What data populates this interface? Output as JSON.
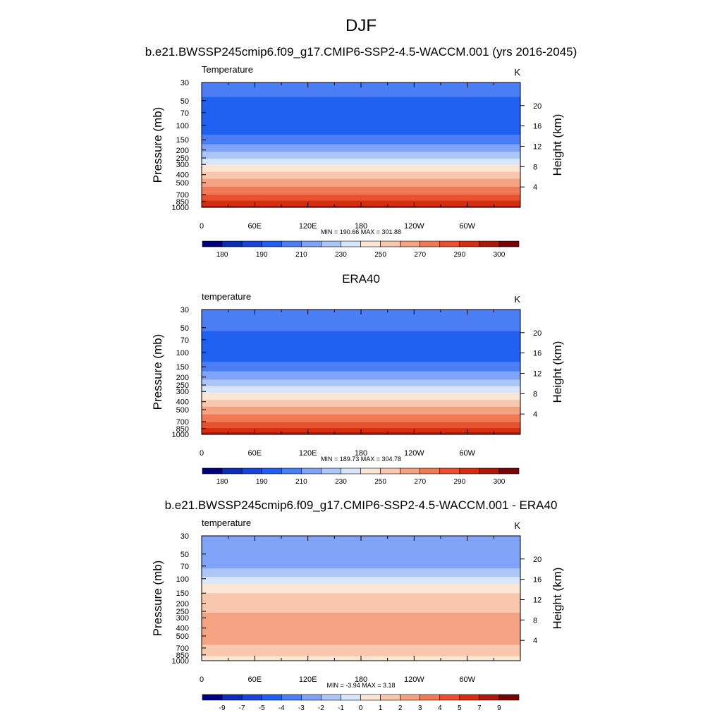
{
  "page_title": "DJF",
  "panels": [
    {
      "title": "b.e21.BWSSP245cmip6.f09_g17.CMIP6-SSP2-4.5-WACCM.001 (yrs 2016-2045)",
      "left_label": "Temperature",
      "units": "K",
      "stats": "MIN = 190.66  MAX = 301.88"
    },
    {
      "title": "ERA40",
      "left_label": "temperature",
      "units": "K",
      "stats": "MIN = 189.73  MAX = 304.78"
    },
    {
      "title": "b.e21.BWSSP245cmip6.f09_g17.CMIP6-SSP2-4.5-WACCM.001 - ERA40",
      "left_label": "temperature",
      "units": "K",
      "stats": "MIN =  -3.94  MAX =   3.18"
    }
  ],
  "chart_data": [
    {
      "type": "heatmap",
      "title": "b.e21.BWSSP245cmip6.f09_g17.CMIP6-SSP2-4.5-WACCM.001 (yrs 2016-2045)",
      "field": "Temperature",
      "units": "K",
      "xlabel": "",
      "ylabel": "Pressure (mb)",
      "y2label": "Height (km)",
      "x_ticks": [
        "0",
        "60E",
        "120E",
        "180",
        "120W",
        "60W"
      ],
      "y_ticks": [
        30,
        50,
        70,
        100,
        150,
        200,
        250,
        300,
        400,
        500,
        700,
        850,
        1000
      ],
      "y2_ticks": [
        20,
        16,
        12,
        8,
        4
      ],
      "min": 190.66,
      "max": 301.88,
      "colorbar_labels": [
        "180",
        "190",
        "210",
        "230",
        "250",
        "270",
        "290",
        "300"
      ],
      "colorbar_colors": [
        "#00007f",
        "#0a2fb4",
        "#1a44d9",
        "#2060f0",
        "#4b7ef5",
        "#7fa3f6",
        "#adc6f8",
        "#d8e6fb",
        "#fbe6d6",
        "#f9c7ad",
        "#f5a283",
        "#f07a56",
        "#e9502f",
        "#d42d12",
        "#a91a0a",
        "#7a0403"
      ],
      "profile": [
        {
          "p": 30,
          "band": 4
        },
        {
          "p": 45,
          "band": 3
        },
        {
          "p": 130,
          "band": 4
        },
        {
          "p": 170,
          "band": 5
        },
        {
          "p": 210,
          "band": 6
        },
        {
          "p": 255,
          "band": 7
        },
        {
          "p": 300,
          "band": 8
        },
        {
          "p": 370,
          "band": 9
        },
        {
          "p": 450,
          "band": 10
        },
        {
          "p": 560,
          "band": 11
        },
        {
          "p": 700,
          "band": 12
        },
        {
          "p": 830,
          "band": 13
        },
        {
          "p": 960,
          "band": 14
        },
        {
          "p": 1000,
          "band": 14
        }
      ]
    },
    {
      "type": "heatmap",
      "title": "ERA40",
      "field": "temperature",
      "units": "K",
      "xlabel": "",
      "ylabel": "Pressure (mb)",
      "y2label": "Height (km)",
      "x_ticks": [
        "0",
        "60E",
        "120E",
        "180",
        "120W",
        "60W"
      ],
      "y_ticks": [
        30,
        50,
        70,
        100,
        150,
        200,
        250,
        300,
        400,
        500,
        700,
        850,
        1000
      ],
      "y2_ticks": [
        20,
        16,
        12,
        8,
        4
      ],
      "min": 189.73,
      "max": 304.78,
      "colorbar_labels": [
        "180",
        "190",
        "210",
        "230",
        "250",
        "270",
        "290",
        "300"
      ],
      "colorbar_colors": [
        "#00007f",
        "#0a2fb4",
        "#1a44d9",
        "#2060f0",
        "#4b7ef5",
        "#7fa3f6",
        "#adc6f8",
        "#d8e6fb",
        "#fbe6d6",
        "#f9c7ad",
        "#f5a283",
        "#f07a56",
        "#e9502f",
        "#d42d12",
        "#a91a0a",
        "#7a0403"
      ],
      "profile": [
        {
          "p": 30,
          "band": 4
        },
        {
          "p": 55,
          "band": 3
        },
        {
          "p": 130,
          "band": 4
        },
        {
          "p": 170,
          "band": 5
        },
        {
          "p": 215,
          "band": 6
        },
        {
          "p": 260,
          "band": 7
        },
        {
          "p": 310,
          "band": 8
        },
        {
          "p": 380,
          "band": 9
        },
        {
          "p": 460,
          "band": 10
        },
        {
          "p": 570,
          "band": 11
        },
        {
          "p": 710,
          "band": 12
        },
        {
          "p": 840,
          "band": 13
        },
        {
          "p": 950,
          "band": 14
        },
        {
          "p": 1000,
          "band": 15
        }
      ]
    },
    {
      "type": "heatmap",
      "title": "b.e21.BWSSP245cmip6.f09_g17.CMIP6-SSP2-4.5-WACCM.001 - ERA40",
      "field": "temperature",
      "units": "K",
      "xlabel": "",
      "ylabel": "Pressure (mb)",
      "y2label": "Height (km)",
      "x_ticks": [
        "0",
        "60E",
        "120E",
        "180",
        "120W",
        "60W"
      ],
      "y_ticks": [
        30,
        50,
        70,
        100,
        150,
        200,
        250,
        300,
        400,
        500,
        700,
        850,
        1000
      ],
      "y2_ticks": [
        20,
        16,
        12,
        8,
        4
      ],
      "min": -3.94,
      "max": 3.18,
      "colorbar_labels": [
        "-9",
        "-7",
        "-5",
        "-4",
        "-3",
        "-2",
        "-1",
        "0",
        "1",
        "2",
        "3",
        "4",
        "5",
        "7",
        "9"
      ],
      "colorbar_colors": [
        "#00007f",
        "#0a2fb4",
        "#1a44d9",
        "#2060f0",
        "#4b7ef5",
        "#7fa3f6",
        "#adc6f8",
        "#d8e6fb",
        "#fbe6d6",
        "#f9c7ad",
        "#f5a283",
        "#f07a56",
        "#e9502f",
        "#d42d12",
        "#a91a0a",
        "#7a0403"
      ],
      "profile": [
        {
          "p": 30,
          "band": 5
        },
        {
          "p": 75,
          "band": 6
        },
        {
          "p": 95,
          "band": 7
        },
        {
          "p": 115,
          "band": 8
        },
        {
          "p": 150,
          "band": 9
        },
        {
          "p": 260,
          "band": 10
        },
        {
          "p": 640,
          "band": 9
        },
        {
          "p": 880,
          "band": 8
        },
        {
          "p": 1000,
          "band": 8
        }
      ]
    }
  ]
}
